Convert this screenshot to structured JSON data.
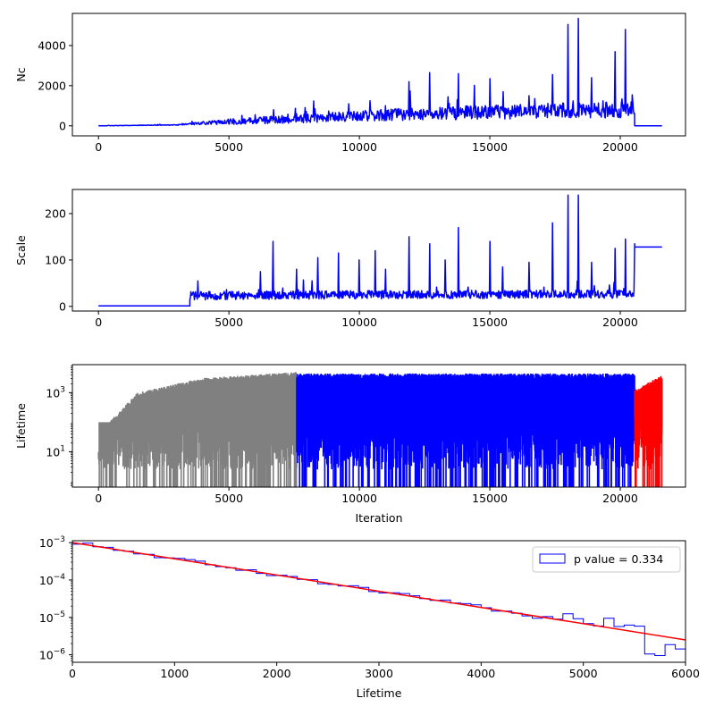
{
  "chart_data": [
    {
      "type": "line",
      "ylabel": "Nc",
      "xlim": [
        -1000,
        22500
      ],
      "ylim": [
        -500,
        5600
      ],
      "xticks": [
        0,
        5000,
        10000,
        15000,
        20000
      ],
      "yticks": [
        0,
        2000,
        4000
      ],
      "xtick_labels": [
        "0",
        "5000",
        "10000",
        "15000",
        "20000"
      ],
      "ytick_labels": [
        "0",
        "2000",
        "4000"
      ],
      "series": [
        {
          "color": "#0000ff",
          "baseline": [
            [
              0,
              0
            ],
            [
              3000,
              40
            ],
            [
              4000,
              120
            ],
            [
              6000,
              230
            ],
            [
              8000,
              330
            ],
            [
              10000,
              430
            ],
            [
              12000,
              520
            ],
            [
              14000,
              580
            ],
            [
              16000,
              640
            ],
            [
              18000,
              690
            ],
            [
              20500,
              720
            ]
          ],
          "amplitude": [
            [
              0,
              10
            ],
            [
              3000,
              40
            ],
            [
              5000,
              300
            ],
            [
              8000,
              500
            ],
            [
              12000,
              700
            ],
            [
              16000,
              800
            ],
            [
              20500,
              900
            ]
          ],
          "spikes": [
            [
              5500,
              520
            ],
            [
              6000,
              550
            ],
            [
              6700,
              800
            ],
            [
              7600,
              600
            ],
            [
              8300,
              850
            ],
            [
              9600,
              1100
            ],
            [
              10400,
              1250
            ],
            [
              11000,
              1000
            ],
            [
              11900,
              2200
            ],
            [
              12700,
              2650
            ],
            [
              13400,
              1450
            ],
            [
              13800,
              2600
            ],
            [
              15000,
              2350
            ],
            [
              15500,
              1700
            ],
            [
              16500,
              1500
            ],
            [
              17400,
              2550
            ],
            [
              18000,
              5050
            ],
            [
              18400,
              5350
            ],
            [
              18900,
              2400
            ],
            [
              19800,
              3700
            ],
            [
              20200,
              4800
            ],
            [
              20600,
              3650
            ]
          ],
          "end_x": 20550,
          "flat_tail": [
            [
              20550,
              0
            ],
            [
              21600,
              0
            ]
          ]
        }
      ]
    },
    {
      "type": "line",
      "ylabel": "Scale",
      "xlim": [
        -1000,
        22500
      ],
      "ylim": [
        -10,
        252
      ],
      "xticks": [
        0,
        5000,
        10000,
        15000,
        20000
      ],
      "yticks": [
        0,
        100,
        200
      ],
      "xtick_labels": [
        "0",
        "5000",
        "10000",
        "15000",
        "20000"
      ],
      "ytick_labels": [
        "0",
        "100",
        "200"
      ],
      "series": [
        {
          "color": "#0000ff",
          "pre": [
            [
              0,
              1
            ],
            [
              3500,
              1
            ]
          ],
          "start_x": 3500,
          "baseline": [
            [
              3500,
              20
            ],
            [
              8000,
              22
            ],
            [
              20500,
              24
            ]
          ],
          "amplitude": [
            [
              3500,
              18
            ],
            [
              20500,
              18
            ]
          ],
          "spikes": [
            [
              3800,
              55
            ],
            [
              6200,
              75
            ],
            [
              6700,
              140
            ],
            [
              7600,
              80
            ],
            [
              8400,
              105
            ],
            [
              9200,
              115
            ],
            [
              10000,
              100
            ],
            [
              10600,
              120
            ],
            [
              11000,
              80
            ],
            [
              11900,
              150
            ],
            [
              12700,
              135
            ],
            [
              13300,
              100
            ],
            [
              13800,
              170
            ],
            [
              15000,
              140
            ],
            [
              15500,
              85
            ],
            [
              16500,
              95
            ],
            [
              17400,
              180
            ],
            [
              18000,
              240
            ],
            [
              18400,
              240
            ],
            [
              18900,
              95
            ],
            [
              19800,
              125
            ],
            [
              20200,
              145
            ],
            [
              20550,
              135
            ]
          ],
          "end_x": 20550,
          "flat_tail": [
            [
              20550,
              128
            ],
            [
              21600,
              128
            ]
          ]
        }
      ]
    },
    {
      "type": "line",
      "ylabel": "Lifetime",
      "xlabel": "Iteration",
      "yscale": "log",
      "xlim": [
        -1000,
        22500
      ],
      "ylim_log10": [
        -0.2,
        3.95
      ],
      "xticks": [
        0,
        5000,
        10000,
        15000,
        20000
      ],
      "ytick_exponents": [
        1,
        3
      ],
      "ytick_base": "10",
      "xtick_labels": [
        "0",
        "5000",
        "10000",
        "15000",
        "20000"
      ],
      "series": [
        {
          "color": "#808080",
          "range": [
            0,
            7600
          ],
          "envelope": "rising",
          "top_log10": [
            [
              0,
              1.0
            ],
            [
              400,
              2.0
            ],
            [
              1500,
              3.0
            ],
            [
              4000,
              3.5
            ],
            [
              7600,
              3.7
            ]
          ]
        },
        {
          "color": "#0000ff",
          "range": [
            7600,
            20550
          ],
          "envelope": "flat",
          "top_log10": [
            [
              7600,
              3.65
            ],
            [
              20550,
              3.65
            ]
          ]
        },
        {
          "color": "#ff0000",
          "range": [
            20550,
            21600
          ],
          "envelope": "rising",
          "top_log10": [
            [
              20550,
              3.1
            ],
            [
              21600,
              3.6
            ]
          ]
        }
      ]
    },
    {
      "type": "histogram",
      "xlabel": "Lifetime",
      "yscale": "log",
      "xlim": [
        0,
        6000
      ],
      "ylim_log10": [
        -6.2,
        -2.95
      ],
      "xticks": [
        0,
        1000,
        2000,
        3000,
        4000,
        5000,
        6000
      ],
      "xtick_labels": [
        "0",
        "1000",
        "2000",
        "3000",
        "4000",
        "5000",
        "6000"
      ],
      "ytick_exponents": [
        -6,
        -5,
        -4,
        -3
      ],
      "ytick_base": "10",
      "bin_width": 100,
      "tau": 1000,
      "rate": 0.001,
      "hist_color": "#0000ff",
      "fit_color": "#ff0000",
      "fit": {
        "x": [
          0,
          6000
        ],
        "y": [
          0.001,
          2.5e-06
        ]
      },
      "bin_adjust": {
        "1500": 1.0,
        "3300": 1.08,
        "3600": 1.12,
        "4800": 1.6,
        "4900": 1.3,
        "5200": 1.8,
        "5300": 1.2,
        "5400": 1.45,
        "5500": 1.5,
        "5600": 0.3,
        "5700": 0.3,
        "5800": 0.65,
        "5900": 0.55
      },
      "legend": {
        "label": "p value = 0.334",
        "position": "upper right"
      }
    }
  ]
}
